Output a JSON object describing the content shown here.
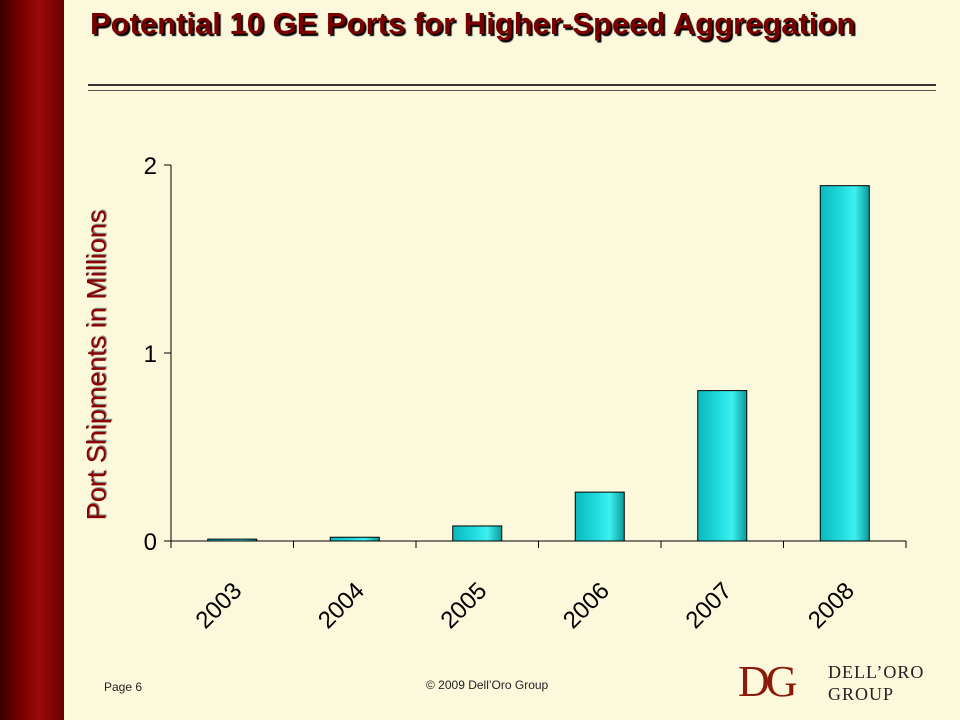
{
  "title": "Potential 10 GE Ports for Higher-Speed Aggregation",
  "footer": {
    "page": "Page 6",
    "copyright": "© 2009 Dell’Oro Group"
  },
  "logo": {
    "mark": "DG",
    "line1": "DELL’ORO",
    "line2": "GROUP"
  },
  "colors": {
    "accent": "#7a0000",
    "bar": "#22dde0",
    "background": "#fbf8dc"
  },
  "chart_data": {
    "type": "bar",
    "title": "",
    "xlabel": "",
    "ylabel": "Port Shipments in Millions",
    "categories": [
      "2003",
      "2004",
      "2005",
      "2006",
      "2007",
      "2008"
    ],
    "values": [
      0.01,
      0.02,
      0.08,
      0.26,
      0.8,
      1.89
    ],
    "ylim": [
      0,
      2
    ],
    "yticks": [
      0,
      1,
      2
    ],
    "grid": false,
    "legend": "none"
  }
}
